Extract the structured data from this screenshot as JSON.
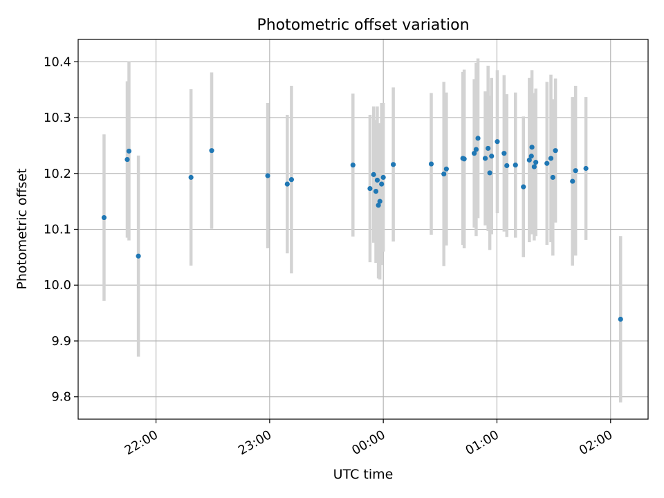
{
  "chart_data": {
    "type": "scatter",
    "title": "Photometric offset variation",
    "xlabel": "UTC time",
    "ylabel": "Photometric offset",
    "x_unit": "UTC time of night, hours past 00:00 (negative = before midnight)",
    "xlim": [
      -2.685,
      2.33
    ],
    "ylim": [
      9.76,
      10.44
    ],
    "x_ticks": [
      {
        "value": -2.0,
        "label": "22:00"
      },
      {
        "value": -1.0,
        "label": "23:00"
      },
      {
        "value": 0.0,
        "label": "00:00"
      },
      {
        "value": 1.0,
        "label": "01:00"
      },
      {
        "value": 2.0,
        "label": "02:00"
      }
    ],
    "y_ticks": [
      {
        "value": 9.8,
        "label": "9.8"
      },
      {
        "value": 9.9,
        "label": "9.9"
      },
      {
        "value": 10.0,
        "label": "10.0"
      },
      {
        "value": 10.1,
        "label": "10.1"
      },
      {
        "value": 10.2,
        "label": "10.2"
      },
      {
        "value": 10.3,
        "label": "10.3"
      },
      {
        "value": 10.4,
        "label": "10.4"
      }
    ],
    "grid": true,
    "legend": "none",
    "colors": {
      "point": "#1f77b4",
      "errorbar": "#d3d3d3",
      "grid": "#b0b0b0"
    },
    "series": [
      {
        "points": [
          {
            "x": -2.457,
            "y": 10.121,
            "yerr": 0.149
          },
          {
            "x": -2.253,
            "y": 10.225,
            "yerr": 0.14
          },
          {
            "x": -2.238,
            "y": 10.24,
            "yerr": 0.16
          },
          {
            "x": -2.155,
            "y": 10.052,
            "yerr": 0.18
          },
          {
            "x": -1.692,
            "y": 10.193,
            "yerr": 0.158
          },
          {
            "x": -1.51,
            "y": 10.241,
            "yerr": 0.14
          },
          {
            "x": -1.017,
            "y": 10.196,
            "yerr": 0.13
          },
          {
            "x": -0.845,
            "y": 10.181,
            "yerr": 0.124
          },
          {
            "x": -0.808,
            "y": 10.189,
            "yerr": 0.168
          },
          {
            "x": -0.267,
            "y": 10.215,
            "yerr": 0.128
          },
          {
            "x": -0.117,
            "y": 10.173,
            "yerr": 0.132
          },
          {
            "x": -0.085,
            "y": 10.198,
            "yerr": 0.122
          },
          {
            "x": -0.065,
            "y": 10.168,
            "yerr": 0.128
          },
          {
            "x": -0.053,
            "y": 10.188,
            "yerr": 0.132
          },
          {
            "x": -0.043,
            "y": 10.143,
            "yerr": 0.131
          },
          {
            "x": -0.03,
            "y": 10.15,
            "yerr": 0.14
          },
          {
            "x": -0.015,
            "y": 10.181,
            "yerr": 0.145
          },
          {
            "x": 0.0,
            "y": 10.193,
            "yerr": 0.133
          },
          {
            "x": 0.088,
            "y": 10.216,
            "yerr": 0.138
          },
          {
            "x": 0.422,
            "y": 10.217,
            "yerr": 0.127
          },
          {
            "x": 0.533,
            "y": 10.199,
            "yerr": 0.165
          },
          {
            "x": 0.555,
            "y": 10.208,
            "yerr": 0.137
          },
          {
            "x": 0.7,
            "y": 10.227,
            "yerr": 0.155
          },
          {
            "x": 0.712,
            "y": 10.226,
            "yerr": 0.16
          },
          {
            "x": 0.8,
            "y": 10.236,
            "yerr": 0.133
          },
          {
            "x": 0.817,
            "y": 10.243,
            "yerr": 0.155
          },
          {
            "x": 0.833,
            "y": 10.263,
            "yerr": 0.143
          },
          {
            "x": 0.897,
            "y": 10.227,
            "yerr": 0.12
          },
          {
            "x": 0.922,
            "y": 10.245,
            "yerr": 0.148
          },
          {
            "x": 0.937,
            "y": 10.201,
            "yerr": 0.138
          },
          {
            "x": 0.953,
            "y": 10.231,
            "yerr": 0.14
          },
          {
            "x": 1.003,
            "y": 10.257,
            "yerr": 0.128
          },
          {
            "x": 1.063,
            "y": 10.236,
            "yerr": 0.14
          },
          {
            "x": 1.087,
            "y": 10.214,
            "yerr": 0.128
          },
          {
            "x": 1.163,
            "y": 10.215,
            "yerr": 0.13
          },
          {
            "x": 1.233,
            "y": 10.176,
            "yerr": 0.126
          },
          {
            "x": 1.285,
            "y": 10.224,
            "yerr": 0.147
          },
          {
            "x": 1.303,
            "y": 10.231,
            "yerr": 0.14
          },
          {
            "x": 1.308,
            "y": 10.247,
            "yerr": 0.138
          },
          {
            "x": 1.328,
            "y": 10.212,
            "yerr": 0.132
          },
          {
            "x": 1.342,
            "y": 10.22,
            "yerr": 0.132
          },
          {
            "x": 1.44,
            "y": 10.218,
            "yerr": 0.146
          },
          {
            "x": 1.475,
            "y": 10.227,
            "yerr": 0.15
          },
          {
            "x": 1.492,
            "y": 10.193,
            "yerr": 0.14
          },
          {
            "x": 1.515,
            "y": 10.241,
            "yerr": 0.129
          },
          {
            "x": 1.665,
            "y": 10.186,
            "yerr": 0.151
          },
          {
            "x": 1.692,
            "y": 10.205,
            "yerr": 0.152
          },
          {
            "x": 1.783,
            "y": 10.209,
            "yerr": 0.128
          },
          {
            "x": 2.088,
            "y": 9.939,
            "yerr": 0.149
          }
        ]
      }
    ]
  }
}
